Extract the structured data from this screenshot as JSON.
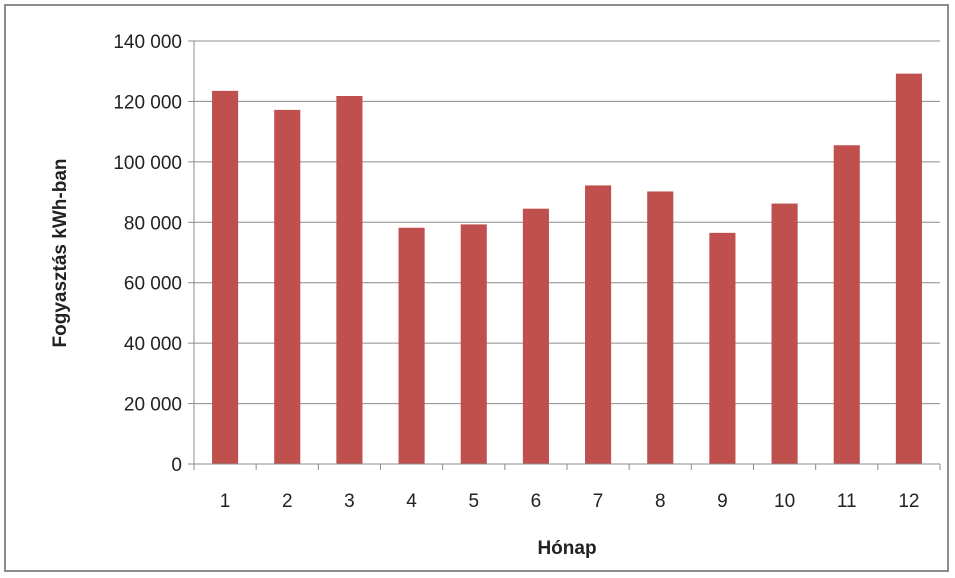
{
  "chart_data": {
    "type": "bar",
    "title": "",
    "xlabel": "Hónap",
    "ylabel": "Fogyasztás kWh-ban",
    "categories": [
      "1",
      "2",
      "3",
      "4",
      "5",
      "6",
      "7",
      "8",
      "9",
      "10",
      "11",
      "12"
    ],
    "series": [
      {
        "values": [
          123500,
          117200,
          121800,
          78200,
          79300,
          84500,
          92200,
          90200,
          76500,
          86200,
          105500,
          129200
        ]
      }
    ],
    "ylim": [
      0,
      140000
    ],
    "yticks": [
      0,
      20000,
      40000,
      60000,
      80000,
      100000,
      120000,
      140000
    ],
    "ytick_labels": [
      "0",
      "20 000",
      "40 000",
      "60 000",
      "80 000",
      "100 000",
      "120 000",
      "140 000"
    ],
    "grid": true,
    "legend": "none",
    "colors": {
      "bar": "#c0504d",
      "grid": "#8c8c8c",
      "axis": "#8c8c8c",
      "frame": "#8c8c8c"
    }
  }
}
